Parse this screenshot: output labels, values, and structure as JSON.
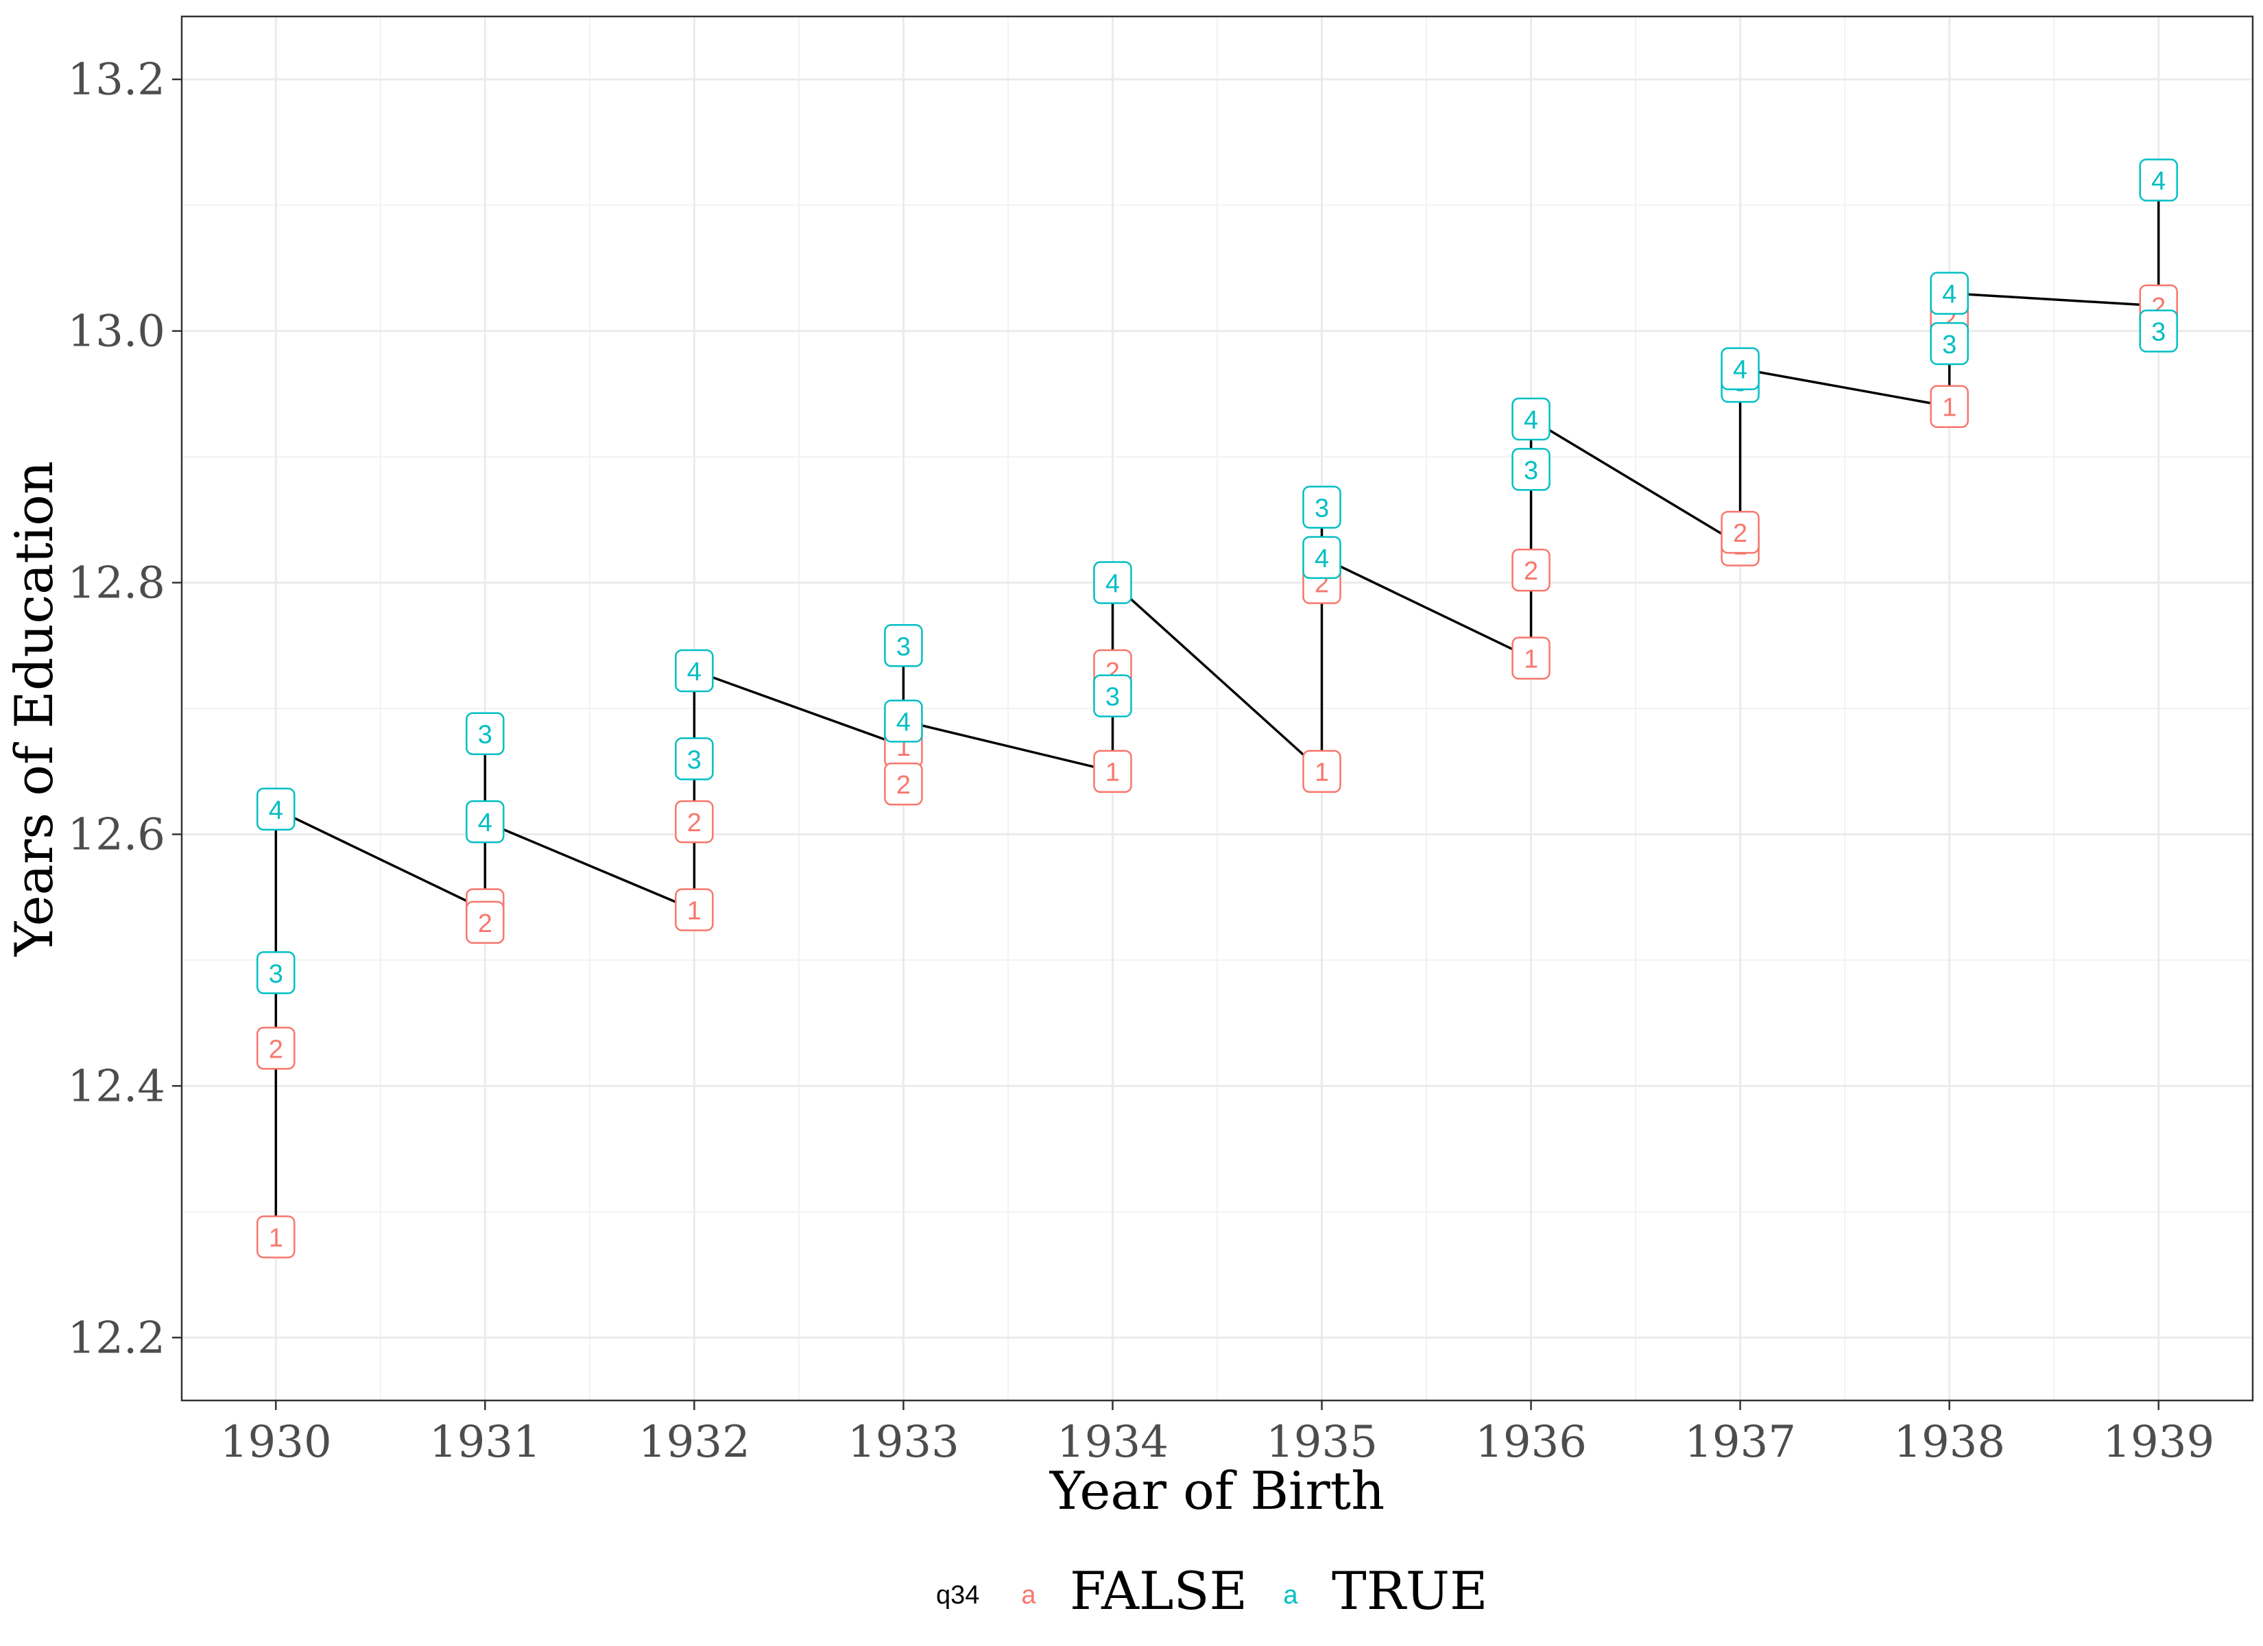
{
  "chart_data": {
    "type": "line",
    "xlabel": "Year of Birth",
    "ylabel": "Years of Education",
    "xlim": [
      1929.55,
      1939.45
    ],
    "ylim": [
      12.15,
      13.25
    ],
    "x_ticks": [
      "1930",
      "1931",
      "1932",
      "1933",
      "1934",
      "1935",
      "1936",
      "1937",
      "1938",
      "1939"
    ],
    "y_ticks": [
      "12.2",
      "12.4",
      "12.6",
      "12.8",
      "13.0",
      "13.2"
    ],
    "grid": true,
    "legend": {
      "title": "q34",
      "position": "bottom",
      "key_glyph": "a",
      "entries": [
        {
          "label": "FALSE",
          "color": "#F8766D"
        },
        {
          "label": "TRUE",
          "color": "#00BFC4"
        }
      ]
    },
    "line_color": "#000000",
    "points": [
      {
        "x": 1930,
        "q": "1",
        "y": 12.28,
        "q34": "FALSE"
      },
      {
        "x": 1930,
        "q": "2",
        "y": 12.43,
        "q34": "FALSE"
      },
      {
        "x": 1930,
        "q": "3",
        "y": 12.49,
        "q34": "TRUE"
      },
      {
        "x": 1930,
        "q": "4",
        "y": 12.62,
        "q34": "TRUE"
      },
      {
        "x": 1931,
        "q": "1",
        "y": 12.54,
        "q34": "FALSE"
      },
      {
        "x": 1931,
        "q": "2",
        "y": 12.53,
        "q34": "FALSE"
      },
      {
        "x": 1931,
        "q": "3",
        "y": 12.68,
        "q34": "TRUE"
      },
      {
        "x": 1931,
        "q": "4",
        "y": 12.61,
        "q34": "TRUE"
      },
      {
        "x": 1932,
        "q": "1",
        "y": 12.54,
        "q34": "FALSE"
      },
      {
        "x": 1932,
        "q": "2",
        "y": 12.61,
        "q34": "FALSE"
      },
      {
        "x": 1932,
        "q": "3",
        "y": 12.66,
        "q34": "TRUE"
      },
      {
        "x": 1932,
        "q": "4",
        "y": 12.73,
        "q34": "TRUE"
      },
      {
        "x": 1933,
        "q": "1",
        "y": 12.67,
        "q34": "FALSE"
      },
      {
        "x": 1933,
        "q": "2",
        "y": 12.64,
        "q34": "FALSE"
      },
      {
        "x": 1933,
        "q": "3",
        "y": 12.75,
        "q34": "TRUE"
      },
      {
        "x": 1933,
        "q": "4",
        "y": 12.69,
        "q34": "TRUE"
      },
      {
        "x": 1934,
        "q": "1",
        "y": 12.65,
        "q34": "FALSE"
      },
      {
        "x": 1934,
        "q": "2",
        "y": 12.73,
        "q34": "FALSE"
      },
      {
        "x": 1934,
        "q": "3",
        "y": 12.71,
        "q34": "TRUE"
      },
      {
        "x": 1934,
        "q": "4",
        "y": 12.8,
        "q34": "TRUE"
      },
      {
        "x": 1935,
        "q": "1",
        "y": 12.65,
        "q34": "FALSE"
      },
      {
        "x": 1935,
        "q": "2",
        "y": 12.8,
        "q34": "FALSE"
      },
      {
        "x": 1935,
        "q": "3",
        "y": 12.86,
        "q34": "TRUE"
      },
      {
        "x": 1935,
        "q": "4",
        "y": 12.82,
        "q34": "TRUE"
      },
      {
        "x": 1936,
        "q": "1",
        "y": 12.74,
        "q34": "FALSE"
      },
      {
        "x": 1936,
        "q": "2",
        "y": 12.81,
        "q34": "FALSE"
      },
      {
        "x": 1936,
        "q": "3",
        "y": 12.89,
        "q34": "TRUE"
      },
      {
        "x": 1936,
        "q": "4",
        "y": 12.93,
        "q34": "TRUE"
      },
      {
        "x": 1937,
        "q": "1",
        "y": 12.83,
        "q34": "FALSE"
      },
      {
        "x": 1937,
        "q": "2",
        "y": 12.84,
        "q34": "FALSE"
      },
      {
        "x": 1937,
        "q": "3",
        "y": 12.96,
        "q34": "TRUE"
      },
      {
        "x": 1937,
        "q": "4",
        "y": 12.97,
        "q34": "TRUE"
      },
      {
        "x": 1938,
        "q": "1",
        "y": 12.94,
        "q34": "FALSE"
      },
      {
        "x": 1938,
        "q": "2",
        "y": 13.01,
        "q34": "FALSE"
      },
      {
        "x": 1938,
        "q": "3",
        "y": 12.99,
        "q34": "TRUE"
      },
      {
        "x": 1938,
        "q": "4",
        "y": 13.03,
        "q34": "TRUE"
      },
      {
        "x": 1939,
        "q": "2",
        "y": 13.02,
        "q34": "FALSE"
      },
      {
        "x": 1939,
        "q": "3",
        "y": 13.0,
        "q34": "TRUE"
      },
      {
        "x": 1939,
        "q": "4",
        "y": 13.12,
        "q34": "TRUE"
      }
    ],
    "line_path": [
      [
        1930,
        12.28
      ],
      [
        1930,
        12.43
      ],
      [
        1930,
        12.49
      ],
      [
        1930,
        12.62
      ],
      [
        1931,
        12.54
      ],
      [
        1931,
        12.53
      ],
      [
        1931,
        12.68
      ],
      [
        1931,
        12.61
      ],
      [
        1932,
        12.54
      ],
      [
        1932,
        12.61
      ],
      [
        1932,
        12.66
      ],
      [
        1932,
        12.73
      ],
      [
        1933,
        12.67
      ],
      [
        1933,
        12.64
      ],
      [
        1933,
        12.75
      ],
      [
        1933,
        12.69
      ],
      [
        1934,
        12.65
      ],
      [
        1934,
        12.73
      ],
      [
        1934,
        12.71
      ],
      [
        1934,
        12.8
      ],
      [
        1935,
        12.65
      ],
      [
        1935,
        12.8
      ],
      [
        1935,
        12.86
      ],
      [
        1935,
        12.82
      ],
      [
        1936,
        12.74
      ],
      [
        1936,
        12.81
      ],
      [
        1936,
        12.89
      ],
      [
        1936,
        12.93
      ],
      [
        1937,
        12.83
      ],
      [
        1937,
        12.84
      ],
      [
        1937,
        12.96
      ],
      [
        1937,
        12.97
      ],
      [
        1938,
        12.94
      ],
      [
        1938,
        13.01
      ],
      [
        1938,
        12.99
      ],
      [
        1938,
        13.03
      ],
      [
        1939,
        13.02
      ],
      [
        1939,
        13.0
      ],
      [
        1939,
        13.12
      ]
    ]
  }
}
